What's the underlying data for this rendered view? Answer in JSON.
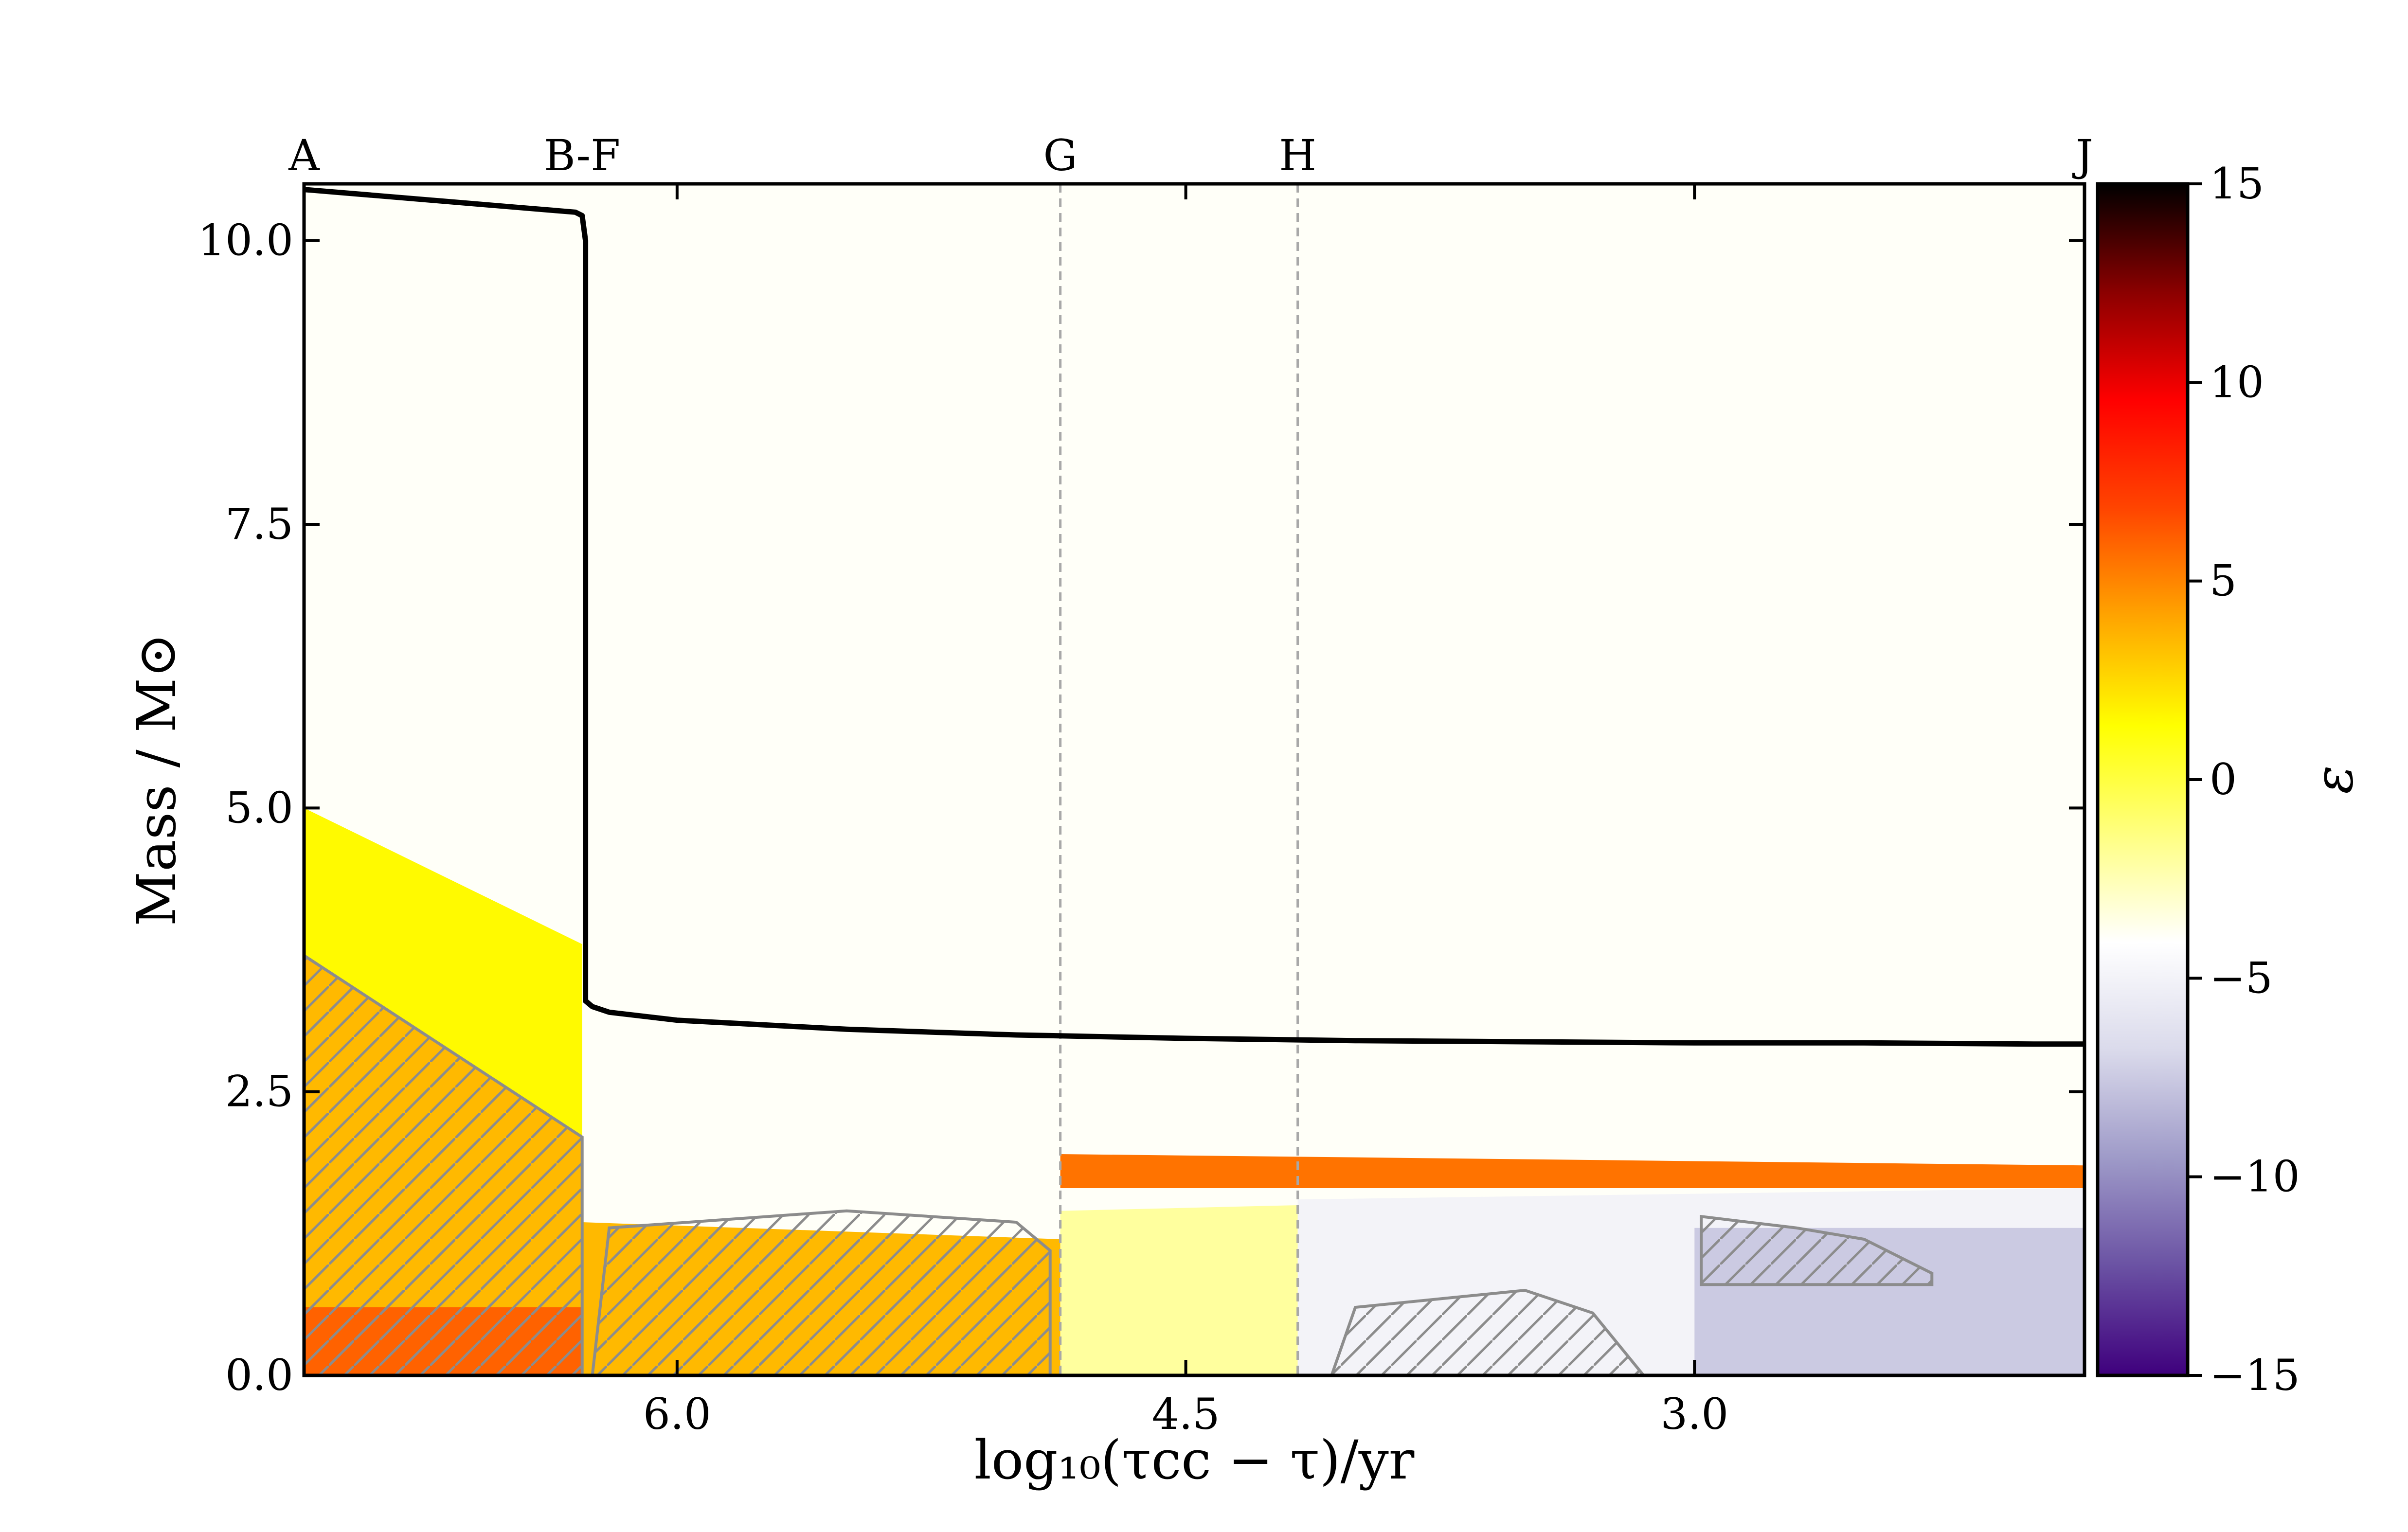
{
  "chart_data": {
    "type": "heatmap",
    "xlabel": "log₁₀(τcc − τ)/yr",
    "ylabel": "Mass / M⊙",
    "xlim": [
      7.1,
      1.85
    ],
    "ylim": [
      0.0,
      10.5
    ],
    "x_ticks": [
      6.0,
      4.5,
      3.0
    ],
    "x_tick_labels": [
      "6.0",
      "4.5",
      "3.0"
    ],
    "y_ticks": [
      0.0,
      2.5,
      5.0,
      7.5,
      10.0
    ],
    "y_tick_labels": [
      "0.0",
      "2.5",
      "5.0",
      "7.5",
      "10.0"
    ],
    "phase_markers": [
      {
        "label": "A",
        "x": 7.1,
        "line": false
      },
      {
        "label": "B-F",
        "x": 6.28,
        "line": false
      },
      {
        "label": "G",
        "x": 4.87,
        "line": true
      },
      {
        "label": "H",
        "x": 4.17,
        "line": true
      },
      {
        "label": "J",
        "x": 1.85,
        "line": false
      }
    ],
    "total_mass": {
      "name": "total mass",
      "x": [
        7.1,
        6.9,
        6.7,
        6.5,
        6.3,
        6.28,
        6.27,
        6.27,
        6.25,
        6.2,
        6.0,
        5.5,
        5.0,
        4.5,
        4.0,
        3.5,
        3.0,
        2.5,
        2.0,
        1.85
      ],
      "y": [
        10.45,
        10.4,
        10.35,
        10.3,
        10.25,
        10.22,
        10.0,
        3.3,
        3.25,
        3.2,
        3.13,
        3.05,
        3.0,
        2.97,
        2.95,
        2.94,
        2.93,
        2.93,
        2.92,
        2.92
      ]
    },
    "colorbar": {
      "label": "ε",
      "range": [
        -15,
        15
      ],
      "ticks": [
        -15,
        -10,
        -5,
        0,
        5,
        10,
        15
      ],
      "tick_labels": [
        "−15",
        "−10",
        "−5",
        "0",
        "5",
        "10",
        "15"
      ],
      "colormap": [
        "#3f007d",
        "#6a51a3",
        "#9e9ac8",
        "#dadaeb",
        "#ffffff",
        "#ffff80",
        "#ffff00",
        "#ffa500",
        "#ff4500",
        "#ff0000",
        "#8b0000",
        "#000000"
      ]
    },
    "regions": [
      {
        "kind": "burning",
        "level": 1.5,
        "x": [
          7.1,
          7.1,
          6.28,
          6.28
        ],
        "y": [
          0.0,
          5.0,
          3.8,
          0.0
        ]
      },
      {
        "kind": "burning",
        "level": 3.5,
        "x": [
          7.1,
          7.1,
          6.28,
          6.28
        ],
        "y": [
          0.0,
          3.7,
          2.1,
          0.0
        ]
      },
      {
        "kind": "burning",
        "level": 6.0,
        "x": [
          7.1,
          7.1,
          6.28,
          6.28
        ],
        "y": [
          0.0,
          0.6,
          0.6,
          0.0
        ]
      },
      {
        "kind": "burning",
        "level": 3.5,
        "x": [
          6.28,
          6.28,
          4.87,
          4.87
        ],
        "y": [
          0.0,
          1.35,
          1.2,
          0.0
        ]
      },
      {
        "kind": "burning",
        "level": 5.5,
        "x": [
          4.87,
          4.87,
          1.85,
          1.85
        ],
        "y": [
          1.65,
          1.95,
          1.85,
          1.65
        ]
      },
      {
        "kind": "cooling",
        "level": -2.0,
        "x": [
          4.87,
          4.87,
          4.17,
          4.17
        ],
        "y": [
          0.0,
          1.45,
          1.5,
          0.0
        ]
      },
      {
        "kind": "cooling",
        "level": -5.0,
        "x": [
          4.17,
          4.17,
          1.85,
          1.85
        ],
        "y": [
          0.0,
          1.55,
          1.65,
          0.0
        ]
      },
      {
        "kind": "cooling",
        "level": -7.5,
        "x": [
          3.0,
          3.0,
          1.85,
          1.85
        ],
        "y": [
          0.0,
          1.3,
          1.3,
          0.0
        ]
      }
    ],
    "convective_zones": [
      {
        "x": [
          7.1,
          7.1,
          6.28,
          6.28
        ],
        "y": [
          0.0,
          3.7,
          2.1,
          0.0
        ]
      },
      {
        "x": [
          6.25,
          6.2,
          5.5,
          5.0,
          4.9,
          4.9
        ],
        "y": [
          0.0,
          1.3,
          1.45,
          1.35,
          1.1,
          0.0
        ]
      },
      {
        "x": [
          4.07,
          4.0,
          3.5,
          3.3,
          3.15
        ],
        "y": [
          0.0,
          0.6,
          0.75,
          0.55,
          0.0
        ]
      },
      {
        "x": [
          2.98,
          2.98,
          2.7,
          2.5,
          2.3,
          2.3
        ],
        "y": [
          0.8,
          1.4,
          1.3,
          1.2,
          0.9,
          0.8
        ]
      }
    ]
  }
}
